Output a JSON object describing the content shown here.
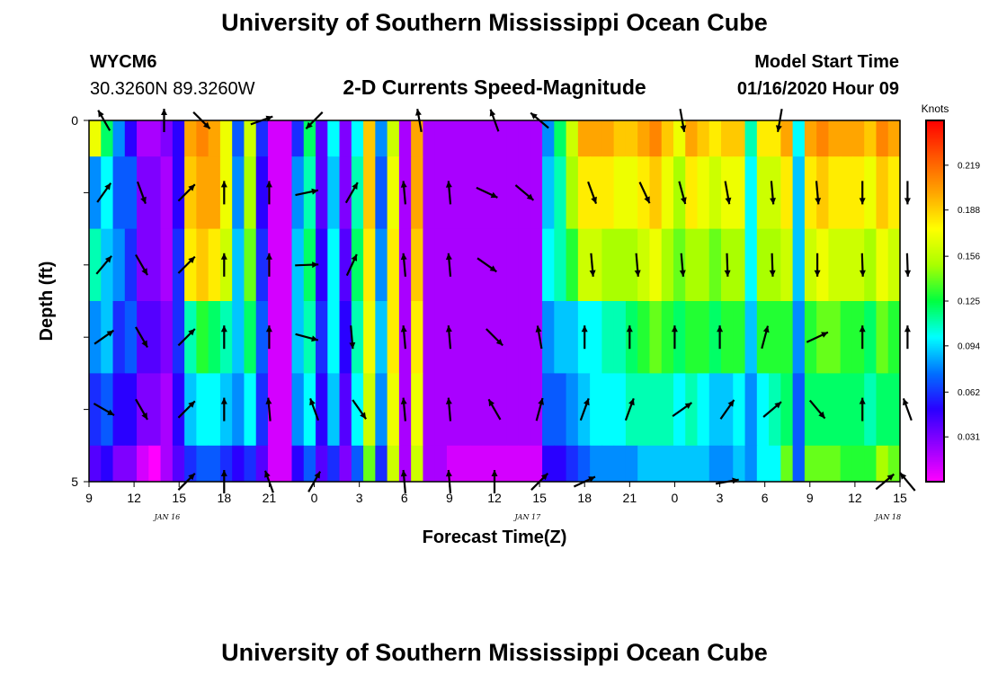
{
  "header": {
    "title": "University of Southern Mississippi Ocean Cube",
    "station": "WYCM6",
    "coords": "30.3260N 89.3260W",
    "subtitle": "2-D Currents Speed-Magnitude",
    "model_label": "Model Start Time",
    "model_time": "01/16/2020 Hour 09"
  },
  "footer": {
    "title": "University of Southern Mississippi Ocean Cube"
  },
  "chart_data": {
    "type": "heatmap",
    "title": "2-D Currents Speed-Magnitude",
    "xlabel": "Forecast Time(Z)",
    "ylabel": "Depth (ft)",
    "x_ticks": [
      "9",
      "12",
      "15",
      "18",
      "21",
      "0",
      "3",
      "6",
      "9",
      "12",
      "15",
      "18",
      "21",
      "0",
      "3",
      "6",
      "9",
      "12",
      "15"
    ],
    "x_tick_hours": [
      9,
      12,
      15,
      18,
      21,
      24,
      27,
      30,
      33,
      36,
      39,
      42,
      45,
      48,
      51,
      54,
      57,
      60,
      63
    ],
    "x_range": [
      9,
      63
    ],
    "date_labels": [
      {
        "text": "JAN 16",
        "hour": 16
      },
      {
        "text": "JAN 17",
        "hour": 40
      },
      {
        "text": "JAN 18",
        "hour": 64
      }
    ],
    "y_ticks": [
      "0",
      "5"
    ],
    "y_range": [
      0,
      5
    ],
    "depth_rows": 5,
    "colorbar": {
      "unit": "Knots",
      "ticks": [
        0.031,
        0.062,
        0.094,
        0.125,
        0.156,
        0.188,
        0.219
      ],
      "range": [
        0,
        0.25
      ],
      "colors": [
        "#ff00ff",
        "#9400ff",
        "#2a00ff",
        "#0070ff",
        "#00ffff",
        "#00ff40",
        "#aaff00",
        "#ffff00",
        "#ffa500",
        "#ff5500",
        "#ff0000"
      ]
    },
    "rows": [
      [
        0.17,
        0.12,
        0.08,
        0.05,
        0.02,
        0.02,
        0.03,
        0.05,
        0.2,
        0.21,
        0.2,
        0.17,
        0.07,
        0.16,
        0.06,
        0.01,
        0.01,
        0.06,
        0.12,
        0.04,
        0.1,
        0.03,
        0.1,
        0.19,
        0.08,
        0.16,
        0.02,
        0.2,
        0.02,
        0.02,
        0.02,
        0.02,
        0.02,
        0.02,
        0.02,
        0.02,
        0.02,
        0.02,
        0.08,
        0.12,
        0.16,
        0.2,
        0.2,
        0.2,
        0.19,
        0.19,
        0.2,
        0.21,
        0.19,
        0.17,
        0.2,
        0.19,
        0.18,
        0.19,
        0.19,
        0.11,
        0.18,
        0.18,
        0.2,
        0.1,
        0.2,
        0.21,
        0.2,
        0.2,
        0.2,
        0.19,
        0.21,
        0.2
      ],
      [
        0.08,
        0.1,
        0.07,
        0.07,
        0.03,
        0.03,
        0.02,
        0.05,
        0.19,
        0.2,
        0.2,
        0.17,
        0.08,
        0.15,
        0.05,
        0.01,
        0.01,
        0.08,
        0.11,
        0.04,
        0.09,
        0.03,
        0.11,
        0.19,
        0.07,
        0.17,
        0.02,
        0.2,
        0.02,
        0.02,
        0.02,
        0.02,
        0.02,
        0.02,
        0.02,
        0.02,
        0.02,
        0.02,
        0.09,
        0.11,
        0.15,
        0.18,
        0.18,
        0.18,
        0.17,
        0.17,
        0.18,
        0.19,
        0.17,
        0.15,
        0.18,
        0.17,
        0.16,
        0.17,
        0.17,
        0.1,
        0.16,
        0.16,
        0.18,
        0.09,
        0.18,
        0.19,
        0.18,
        0.18,
        0.18,
        0.17,
        0.19,
        0.18
      ],
      [
        0.11,
        0.09,
        0.08,
        0.06,
        0.03,
        0.03,
        0.02,
        0.06,
        0.18,
        0.19,
        0.18,
        0.16,
        0.09,
        0.14,
        0.06,
        0.01,
        0.01,
        0.09,
        0.12,
        0.05,
        0.1,
        0.04,
        0.12,
        0.18,
        0.08,
        0.18,
        0.02,
        0.19,
        0.02,
        0.02,
        0.02,
        0.02,
        0.02,
        0.02,
        0.02,
        0.02,
        0.02,
        0.02,
        0.1,
        0.11,
        0.13,
        0.16,
        0.16,
        0.15,
        0.15,
        0.15,
        0.16,
        0.17,
        0.15,
        0.14,
        0.15,
        0.15,
        0.14,
        0.15,
        0.15,
        0.1,
        0.15,
        0.15,
        0.16,
        0.09,
        0.16,
        0.17,
        0.16,
        0.16,
        0.16,
        0.15,
        0.17,
        0.16
      ],
      [
        0.08,
        0.09,
        0.06,
        0.07,
        0.04,
        0.04,
        0.03,
        0.06,
        0.11,
        0.13,
        0.12,
        0.11,
        0.09,
        0.12,
        0.07,
        0.01,
        0.01,
        0.09,
        0.11,
        0.06,
        0.1,
        0.05,
        0.11,
        0.17,
        0.09,
        0.18,
        0.02,
        0.18,
        0.02,
        0.02,
        0.02,
        0.02,
        0.02,
        0.02,
        0.02,
        0.02,
        0.02,
        0.02,
        0.08,
        0.09,
        0.09,
        0.1,
        0.1,
        0.11,
        0.11,
        0.12,
        0.13,
        0.14,
        0.13,
        0.12,
        0.13,
        0.13,
        0.12,
        0.13,
        0.13,
        0.09,
        0.13,
        0.13,
        0.13,
        0.08,
        0.13,
        0.14,
        0.14,
        0.13,
        0.13,
        0.12,
        0.14,
        0.13
      ],
      [
        0.06,
        0.07,
        0.05,
        0.05,
        0.03,
        0.03,
        0.02,
        0.05,
        0.09,
        0.1,
        0.1,
        0.09,
        0.08,
        0.1,
        0.06,
        0.01,
        0.01,
        0.08,
        0.1,
        0.05,
        0.09,
        0.04,
        0.1,
        0.16,
        0.08,
        0.17,
        0.02,
        0.17,
        0.02,
        0.02,
        0.02,
        0.02,
        0.02,
        0.02,
        0.02,
        0.02,
        0.02,
        0.02,
        0.07,
        0.07,
        0.08,
        0.09,
        0.1,
        0.1,
        0.1,
        0.11,
        0.11,
        0.11,
        0.11,
        0.1,
        0.11,
        0.1,
        0.09,
        0.09,
        0.1,
        0.08,
        0.1,
        0.11,
        0.12,
        0.07,
        0.12,
        0.12,
        0.12,
        0.12,
        0.12,
        0.11,
        0.12,
        0.12
      ],
      [
        0.04,
        0.05,
        0.03,
        0.03,
        0.01,
        0.0,
        0.02,
        0.04,
        0.06,
        0.07,
        0.07,
        0.06,
        0.05,
        0.06,
        0.04,
        0.01,
        0.01,
        0.05,
        0.07,
        0.04,
        0.06,
        0.03,
        0.07,
        0.14,
        0.06,
        0.16,
        0.02,
        0.16,
        0.02,
        0.02,
        0.01,
        0.01,
        0.01,
        0.01,
        0.01,
        0.01,
        0.01,
        0.01,
        0.05,
        0.05,
        0.06,
        0.07,
        0.08,
        0.08,
        0.08,
        0.08,
        0.09,
        0.09,
        0.09,
        0.09,
        0.09,
        0.09,
        0.08,
        0.08,
        0.09,
        0.08,
        0.1,
        0.1,
        0.14,
        0.07,
        0.14,
        0.14,
        0.14,
        0.13,
        0.13,
        0.13,
        0.15,
        0.14
      ]
    ],
    "vectors": [
      {
        "hour": 10,
        "depth": 0,
        "speed": 0.1,
        "dir": 330
      },
      {
        "hour": 14,
        "depth": 0,
        "speed": 0.2,
        "dir": 0
      },
      {
        "hour": 16.5,
        "depth": 0,
        "speed": 0.16,
        "dir": 135
      },
      {
        "hour": 20.5,
        "depth": 0,
        "speed": 0.05,
        "dir": 70
      },
      {
        "hour": 24,
        "depth": 0,
        "speed": 0.02,
        "dir": 225
      },
      {
        "hour": 31,
        "depth": 0,
        "speed": 0.19,
        "dir": 350
      },
      {
        "hour": 36,
        "depth": 0,
        "speed": 0.2,
        "dir": 340
      },
      {
        "hour": 39,
        "depth": 0,
        "speed": 0.03,
        "dir": 310
      },
      {
        "hour": 48.5,
        "depth": 0,
        "speed": 0.21,
        "dir": 170
      },
      {
        "hour": 55,
        "depth": 0,
        "speed": 0.2,
        "dir": 190
      },
      {
        "hour": 10,
        "depth": 1,
        "speed": 0.1,
        "dir": 35
      },
      {
        "hour": 12.5,
        "depth": 1,
        "speed": 0.08,
        "dir": 160
      },
      {
        "hour": 15.5,
        "depth": 1,
        "speed": 0.07,
        "dir": 45
      },
      {
        "hour": 18,
        "depth": 1,
        "speed": 0.19,
        "dir": 0
      },
      {
        "hour": 21,
        "depth": 1,
        "speed": 0.19,
        "dir": 0
      },
      {
        "hour": 23.5,
        "depth": 1,
        "speed": 0.03,
        "dir": 78
      },
      {
        "hour": 26.5,
        "depth": 1,
        "speed": 0.04,
        "dir": 30
      },
      {
        "hour": 30,
        "depth": 1,
        "speed": 0.19,
        "dir": 355
      },
      {
        "hour": 33,
        "depth": 1,
        "speed": 0.2,
        "dir": 355
      },
      {
        "hour": 35.5,
        "depth": 1,
        "speed": 0.02,
        "dir": 115
      },
      {
        "hour": 38,
        "depth": 1,
        "speed": 0.02,
        "dir": 130
      },
      {
        "hour": 42.5,
        "depth": 1,
        "speed": 0.2,
        "dir": 160
      },
      {
        "hour": 46,
        "depth": 1,
        "speed": 0.2,
        "dir": 155
      },
      {
        "hour": 48.5,
        "depth": 1,
        "speed": 0.19,
        "dir": 165
      },
      {
        "hour": 51.5,
        "depth": 1,
        "speed": 0.19,
        "dir": 170
      },
      {
        "hour": 54.5,
        "depth": 1,
        "speed": 0.18,
        "dir": 175
      },
      {
        "hour": 57.5,
        "depth": 1,
        "speed": 0.2,
        "dir": 175
      },
      {
        "hour": 60.5,
        "depth": 1,
        "speed": 0.2,
        "dir": 180
      },
      {
        "hour": 63.5,
        "depth": 1,
        "speed": 0.21,
        "dir": 180
      },
      {
        "hour": 10,
        "depth": 2,
        "speed": 0.11,
        "dir": 40
      },
      {
        "hour": 12.5,
        "depth": 2,
        "speed": 0.09,
        "dir": 150
      },
      {
        "hour": 15.5,
        "depth": 2,
        "speed": 0.06,
        "dir": 45
      },
      {
        "hour": 18,
        "depth": 2,
        "speed": 0.18,
        "dir": 0
      },
      {
        "hour": 21,
        "depth": 2,
        "speed": 0.18,
        "dir": 0
      },
      {
        "hour": 23.5,
        "depth": 2,
        "speed": 0.03,
        "dir": 88
      },
      {
        "hour": 26.5,
        "depth": 2,
        "speed": 0.05,
        "dir": 25
      },
      {
        "hour": 30,
        "depth": 2,
        "speed": 0.18,
        "dir": 355
      },
      {
        "hour": 33,
        "depth": 2,
        "speed": 0.19,
        "dir": 355
      },
      {
        "hour": 35.5,
        "depth": 2,
        "speed": 0.02,
        "dir": 125
      },
      {
        "hour": 42.5,
        "depth": 2,
        "speed": 0.16,
        "dir": 175
      },
      {
        "hour": 45.5,
        "depth": 2,
        "speed": 0.15,
        "dir": 175
      },
      {
        "hour": 48.5,
        "depth": 2,
        "speed": 0.16,
        "dir": 175
      },
      {
        "hour": 51.5,
        "depth": 2,
        "speed": 0.15,
        "dir": 178
      },
      {
        "hour": 54.5,
        "depth": 2,
        "speed": 0.15,
        "dir": 178
      },
      {
        "hour": 57.5,
        "depth": 2,
        "speed": 0.16,
        "dir": 180
      },
      {
        "hour": 60.5,
        "depth": 2,
        "speed": 0.16,
        "dir": 178
      },
      {
        "hour": 63.5,
        "depth": 2,
        "speed": 0.16,
        "dir": 178
      },
      {
        "hour": 10,
        "depth": 3,
        "speed": 0.09,
        "dir": 55
      },
      {
        "hour": 12.5,
        "depth": 3,
        "speed": 0.1,
        "dir": 150
      },
      {
        "hour": 15.5,
        "depth": 3,
        "speed": 0.07,
        "dir": 45
      },
      {
        "hour": 18,
        "depth": 3,
        "speed": 0.13,
        "dir": 0
      },
      {
        "hour": 21,
        "depth": 3,
        "speed": 0.13,
        "dir": 0
      },
      {
        "hour": 23.5,
        "depth": 3,
        "speed": 0.06,
        "dir": 105
      },
      {
        "hour": 26.5,
        "depth": 3,
        "speed": 0.07,
        "dir": 175
      },
      {
        "hour": 30,
        "depth": 3,
        "speed": 0.17,
        "dir": 355
      },
      {
        "hour": 33,
        "depth": 3,
        "speed": 0.18,
        "dir": 355
      },
      {
        "hour": 36,
        "depth": 3,
        "speed": 0.02,
        "dir": 135
      },
      {
        "hour": 39,
        "depth": 3,
        "speed": 0.02,
        "dir": 350
      },
      {
        "hour": 42,
        "depth": 3,
        "speed": 0.09,
        "dir": 0
      },
      {
        "hour": 45,
        "depth": 3,
        "speed": 0.1,
        "dir": 0
      },
      {
        "hour": 48,
        "depth": 3,
        "speed": 0.11,
        "dir": 0
      },
      {
        "hour": 51,
        "depth": 3,
        "speed": 0.11,
        "dir": 0
      },
      {
        "hour": 54,
        "depth": 3,
        "speed": 0.12,
        "dir": 15
      },
      {
        "hour": 57.5,
        "depth": 3,
        "speed": 0.13,
        "dir": 65
      },
      {
        "hour": 60.5,
        "depth": 3,
        "speed": 0.14,
        "dir": 0
      },
      {
        "hour": 63.5,
        "depth": 3,
        "speed": 0.13,
        "dir": 0
      },
      {
        "hour": 10,
        "depth": 4,
        "speed": 0.07,
        "dir": 120
      },
      {
        "hour": 12.5,
        "depth": 4,
        "speed": 0.08,
        "dir": 150
      },
      {
        "hour": 15.5,
        "depth": 4,
        "speed": 0.06,
        "dir": 45
      },
      {
        "hour": 18,
        "depth": 4,
        "speed": 0.1,
        "dir": 0
      },
      {
        "hour": 21,
        "depth": 4,
        "speed": 0.1,
        "dir": 355
      },
      {
        "hour": 24,
        "depth": 4,
        "speed": 0.06,
        "dir": 340
      },
      {
        "hour": 27,
        "depth": 4,
        "speed": 0.07,
        "dir": 145
      },
      {
        "hour": 30,
        "depth": 4,
        "speed": 0.16,
        "dir": 355
      },
      {
        "hour": 33,
        "depth": 4,
        "speed": 0.17,
        "dir": 355
      },
      {
        "hour": 36,
        "depth": 4,
        "speed": 0.02,
        "dir": 330
      },
      {
        "hour": 39,
        "depth": 4,
        "speed": 0.02,
        "dir": 15
      },
      {
        "hour": 42,
        "depth": 4,
        "speed": 0.07,
        "dir": 20
      },
      {
        "hour": 45,
        "depth": 4,
        "speed": 0.08,
        "dir": 20
      },
      {
        "hour": 48.5,
        "depth": 4,
        "speed": 0.1,
        "dir": 55
      },
      {
        "hour": 51.5,
        "depth": 4,
        "speed": 0.1,
        "dir": 35
      },
      {
        "hour": 54.5,
        "depth": 4,
        "speed": 0.1,
        "dir": 50
      },
      {
        "hour": 57.5,
        "depth": 4,
        "speed": 0.11,
        "dir": 140
      },
      {
        "hour": 60.5,
        "depth": 4,
        "speed": 0.12,
        "dir": 0
      },
      {
        "hour": 63.5,
        "depth": 4,
        "speed": 0.12,
        "dir": 340
      },
      {
        "hour": 15.5,
        "depth": 5,
        "speed": 0.06,
        "dir": 45
      },
      {
        "hour": 18,
        "depth": 5,
        "speed": 0.08,
        "dir": 0
      },
      {
        "hour": 21,
        "depth": 5,
        "speed": 0.08,
        "dir": 340
      },
      {
        "hour": 24,
        "depth": 5,
        "speed": 0.05,
        "dir": 30
      },
      {
        "hour": 30,
        "depth": 5,
        "speed": 0.14,
        "dir": 355
      },
      {
        "hour": 33,
        "depth": 5,
        "speed": 0.16,
        "dir": 355
      },
      {
        "hour": 36,
        "depth": 5,
        "speed": 0.01,
        "dir": 0
      },
      {
        "hour": 39,
        "depth": 5,
        "speed": 0.05,
        "dir": 45
      },
      {
        "hour": 42,
        "depth": 5,
        "speed": 0.07,
        "dir": 65
      },
      {
        "hour": 51.5,
        "depth": 5,
        "speed": 0.09,
        "dir": 80
      },
      {
        "hour": 62,
        "depth": 5,
        "speed": 0.15,
        "dir": 50
      },
      {
        "hour": 63.5,
        "depth": 5,
        "speed": 0.15,
        "dir": 320
      }
    ]
  }
}
